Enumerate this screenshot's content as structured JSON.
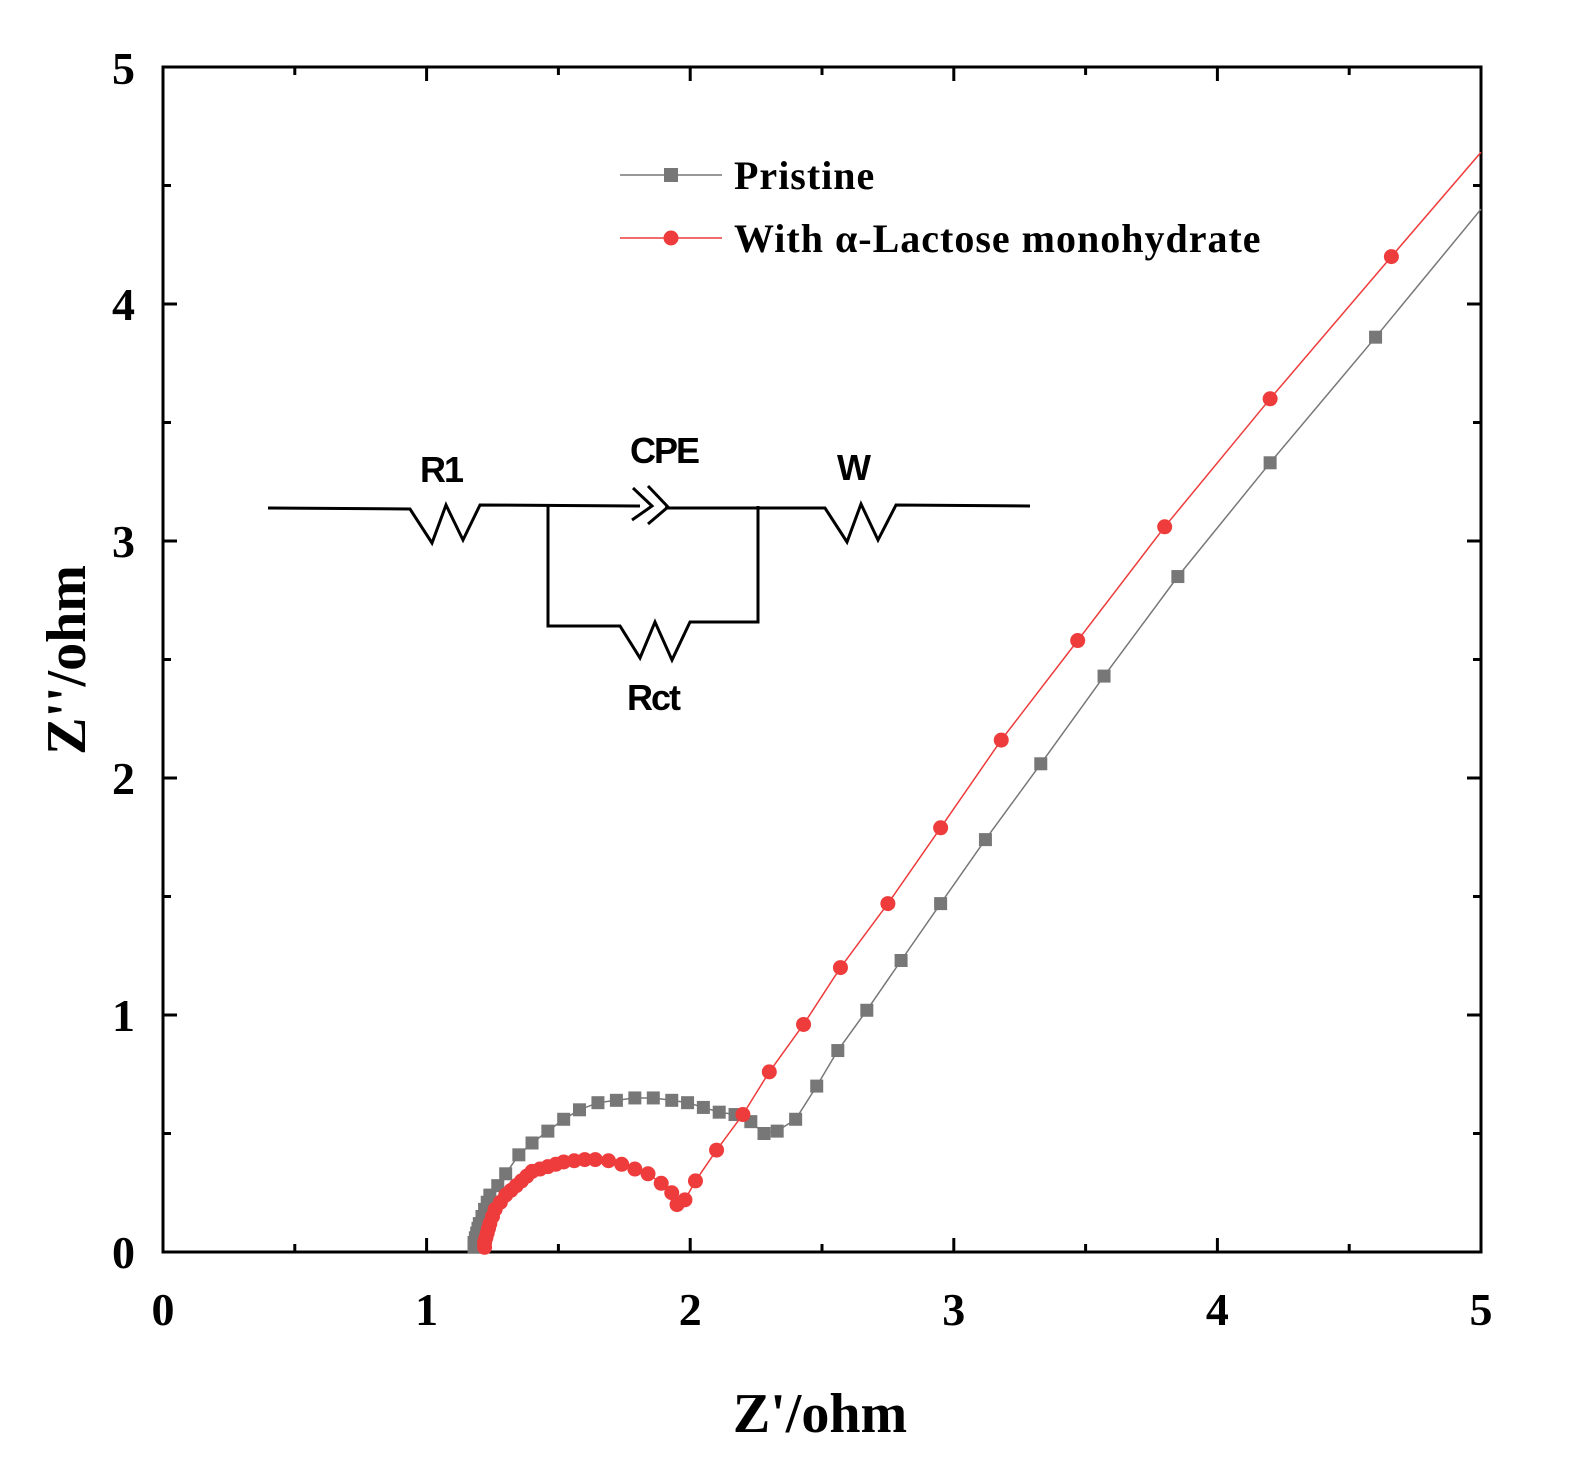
{
  "chart_data": {
    "type": "scatter",
    "title": "",
    "xlabel": "Z'/ohm",
    "ylabel": "Z''/ohm",
    "xlim": [
      0,
      5
    ],
    "ylim": [
      0,
      5
    ],
    "xticks": [
      "0",
      "1",
      "2",
      "3",
      "4",
      "5"
    ],
    "yticks": [
      "0",
      "1",
      "2",
      "3",
      "4",
      "5"
    ],
    "legend_position": "top-center",
    "series": [
      {
        "name": "Pristine",
        "color": "#777777",
        "marker": "square",
        "x": [
          1.18,
          1.18,
          1.185,
          1.19,
          1.195,
          1.2,
          1.21,
          1.22,
          1.23,
          1.24,
          1.27,
          1.3,
          1.35,
          1.4,
          1.46,
          1.52,
          1.58,
          1.65,
          1.72,
          1.79,
          1.86,
          1.93,
          1.99,
          2.05,
          2.11,
          2.17,
          2.23,
          2.28,
          2.33,
          2.4,
          2.48,
          2.56,
          2.67,
          2.8,
          2.95,
          3.12,
          3.33,
          3.57,
          3.85,
          4.2,
          4.6,
          5.0
        ],
        "y": [
          0.02,
          0.04,
          0.06,
          0.08,
          0.1,
          0.12,
          0.15,
          0.18,
          0.21,
          0.24,
          0.28,
          0.33,
          0.41,
          0.46,
          0.51,
          0.56,
          0.6,
          0.63,
          0.64,
          0.65,
          0.65,
          0.64,
          0.63,
          0.61,
          0.59,
          0.58,
          0.55,
          0.5,
          0.51,
          0.56,
          0.7,
          0.85,
          1.02,
          1.23,
          1.47,
          1.74,
          2.06,
          2.43,
          2.85,
          3.33,
          3.86,
          4.4
        ]
      },
      {
        "name": "With α-Lactose monohydrate",
        "color": "#ee3b3b",
        "marker": "circle",
        "x": [
          1.22,
          1.22,
          1.225,
          1.23,
          1.235,
          1.24,
          1.25,
          1.26,
          1.28,
          1.3,
          1.32,
          1.34,
          1.36,
          1.38,
          1.4,
          1.43,
          1.46,
          1.49,
          1.52,
          1.56,
          1.6,
          1.64,
          1.69,
          1.74,
          1.79,
          1.84,
          1.89,
          1.93,
          1.95,
          1.98,
          2.02,
          2.1,
          2.2,
          2.3,
          2.43,
          2.57,
          2.75,
          2.95,
          3.18,
          3.47,
          3.8,
          4.2,
          4.66,
          5.0
        ],
        "y": [
          0.02,
          0.04,
          0.06,
          0.08,
          0.1,
          0.12,
          0.15,
          0.18,
          0.21,
          0.24,
          0.26,
          0.28,
          0.3,
          0.32,
          0.34,
          0.35,
          0.36,
          0.37,
          0.38,
          0.385,
          0.39,
          0.39,
          0.385,
          0.37,
          0.35,
          0.33,
          0.29,
          0.25,
          0.2,
          0.22,
          0.3,
          0.43,
          0.58,
          0.76,
          0.96,
          1.2,
          1.47,
          1.79,
          2.16,
          2.58,
          3.06,
          3.6,
          4.2,
          4.64
        ]
      }
    ],
    "inset": {
      "type": "equivalent-circuit",
      "labels": {
        "r1": "R1",
        "cpe": "CPE",
        "w": "W",
        "rct": "Rct"
      }
    }
  }
}
